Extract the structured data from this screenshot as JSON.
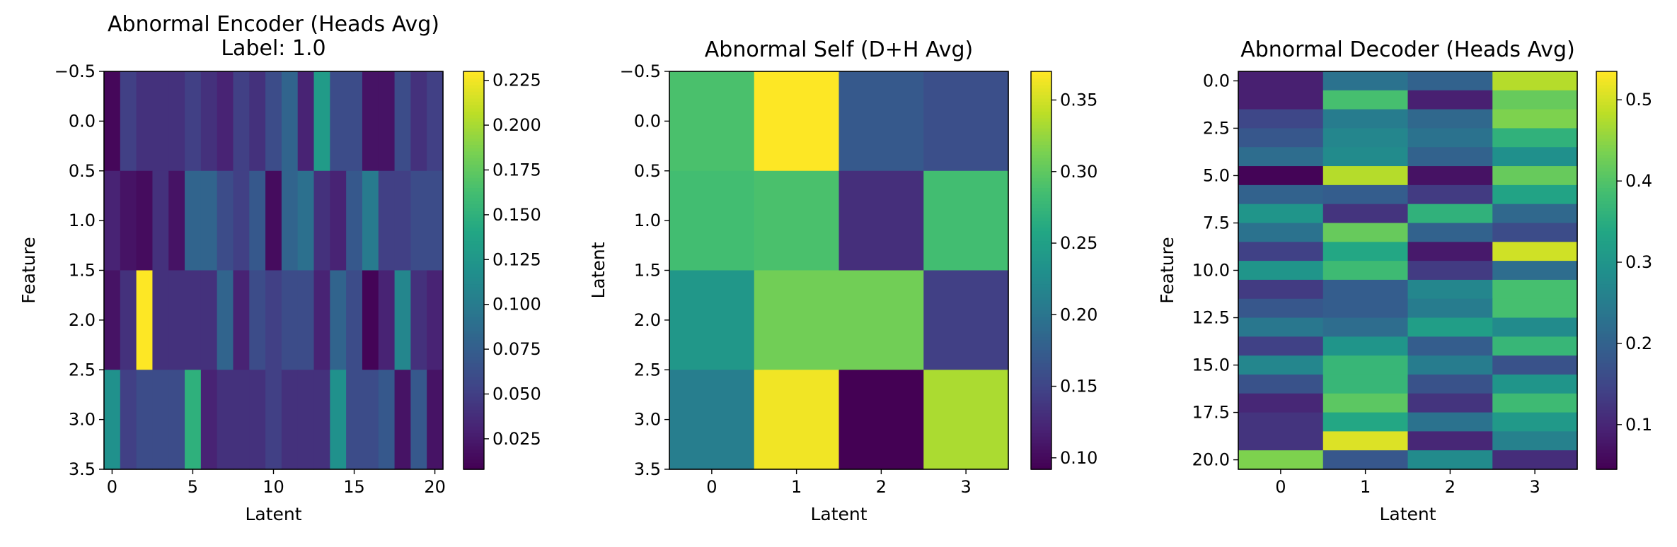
{
  "chart_data": [
    {
      "type": "heatmap",
      "title": "Abnormal Encoder (Heads Avg)",
      "subtitle": "Label: 1.0",
      "xlabel": "Latent",
      "ylabel": "Feature",
      "cols": 21,
      "rows": 4,
      "xlim": [
        -0.5,
        20.5
      ],
      "ylim": [
        3.5,
        -0.5
      ],
      "xticks": [
        0,
        5,
        10,
        15,
        20
      ],
      "yticks": [
        -0.5,
        0.0,
        0.5,
        1.0,
        1.5,
        2.0,
        2.5,
        3.0,
        3.5
      ],
      "colorbar": {
        "min": 0.008,
        "max": 0.23,
        "ticks": [
          "0.025",
          "0.050",
          "0.075",
          "0.100",
          "0.125",
          "0.150",
          "0.175",
          "0.200",
          "0.225"
        ]
      },
      "values": [
        [
          0.012,
          0.05,
          0.04,
          0.04,
          0.04,
          0.05,
          0.04,
          0.03,
          0.05,
          0.04,
          0.06,
          0.08,
          0.03,
          0.13,
          0.06,
          0.06,
          0.02,
          0.02,
          0.06,
          0.04,
          0.05
        ],
        [
          0.03,
          0.02,
          0.015,
          0.04,
          0.02,
          0.08,
          0.08,
          0.06,
          0.05,
          0.07,
          0.015,
          0.08,
          0.09,
          0.04,
          0.03,
          0.07,
          0.1,
          0.05,
          0.05,
          0.06,
          0.06
        ],
        [
          0.02,
          0.04,
          0.23,
          0.04,
          0.04,
          0.04,
          0.04,
          0.08,
          0.03,
          0.06,
          0.05,
          0.06,
          0.06,
          0.03,
          0.08,
          0.06,
          0.01,
          0.03,
          0.11,
          0.04,
          0.03
        ],
        [
          0.12,
          0.05,
          0.06,
          0.06,
          0.06,
          0.15,
          0.03,
          0.04,
          0.04,
          0.04,
          0.05,
          0.04,
          0.04,
          0.04,
          0.12,
          0.06,
          0.06,
          0.07,
          0.02,
          0.07,
          0.02
        ]
      ]
    },
    {
      "type": "heatmap",
      "title": "Abnormal Self (D+H Avg)",
      "xlabel": "Latent",
      "ylabel": "Latent",
      "cols": 4,
      "rows": 4,
      "xlim": [
        -0.5,
        3.5
      ],
      "ylim": [
        3.5,
        -0.5
      ],
      "xticks": [
        0,
        1,
        2,
        3
      ],
      "yticks": [
        -0.5,
        0.0,
        0.5,
        1.0,
        1.5,
        2.0,
        2.5,
        3.0,
        3.5
      ],
      "colorbar": {
        "min": 0.092,
        "max": 0.37,
        "ticks": [
          "0.10",
          "0.15",
          "0.20",
          "0.25",
          "0.30",
          "0.35"
        ]
      },
      "values": [
        [
          0.29,
          0.37,
          0.17,
          0.16
        ],
        [
          0.285,
          0.29,
          0.13,
          0.285
        ],
        [
          0.24,
          0.31,
          0.31,
          0.145
        ],
        [
          0.21,
          0.365,
          0.092,
          0.335
        ]
      ]
    },
    {
      "type": "heatmap",
      "title": "Abnormal Decoder (Heads Avg)",
      "xlabel": "Latent",
      "ylabel": "Feature",
      "cols": 4,
      "rows": 21,
      "xlim": [
        -0.5,
        3.5
      ],
      "ylim": [
        20.5,
        -0.5
      ],
      "xticks": [
        0,
        1,
        2,
        3
      ],
      "yticks": [
        0.0,
        2.5,
        5.0,
        7.5,
        10.0,
        12.5,
        15.0,
        17.5,
        20.0
      ],
      "colorbar": {
        "min": 0.045,
        "max": 0.535,
        "ticks": [
          "0.1",
          "0.2",
          "0.3",
          "0.4",
          "0.5"
        ]
      },
      "values": [
        [
          0.09,
          0.23,
          0.2,
          0.48
        ],
        [
          0.09,
          0.39,
          0.09,
          0.42
        ],
        [
          0.15,
          0.25,
          0.21,
          0.44
        ],
        [
          0.18,
          0.27,
          0.23,
          0.36
        ],
        [
          0.22,
          0.28,
          0.2,
          0.29
        ],
        [
          0.05,
          0.48,
          0.07,
          0.42
        ],
        [
          0.2,
          0.19,
          0.13,
          0.33
        ],
        [
          0.3,
          0.12,
          0.36,
          0.21
        ],
        [
          0.23,
          0.42,
          0.2,
          0.16
        ],
        [
          0.14,
          0.34,
          0.08,
          0.5
        ],
        [
          0.3,
          0.38,
          0.13,
          0.22
        ],
        [
          0.13,
          0.19,
          0.27,
          0.39
        ],
        [
          0.18,
          0.19,
          0.25,
          0.39
        ],
        [
          0.24,
          0.22,
          0.32,
          0.28
        ],
        [
          0.14,
          0.3,
          0.19,
          0.37
        ],
        [
          0.27,
          0.37,
          0.25,
          0.17
        ],
        [
          0.17,
          0.37,
          0.17,
          0.3
        ],
        [
          0.1,
          0.41,
          0.12,
          0.38
        ],
        [
          0.12,
          0.34,
          0.23,
          0.31
        ],
        [
          0.12,
          0.51,
          0.1,
          0.26
        ],
        [
          0.44,
          0.18,
          0.28,
          0.11
        ]
      ]
    }
  ]
}
